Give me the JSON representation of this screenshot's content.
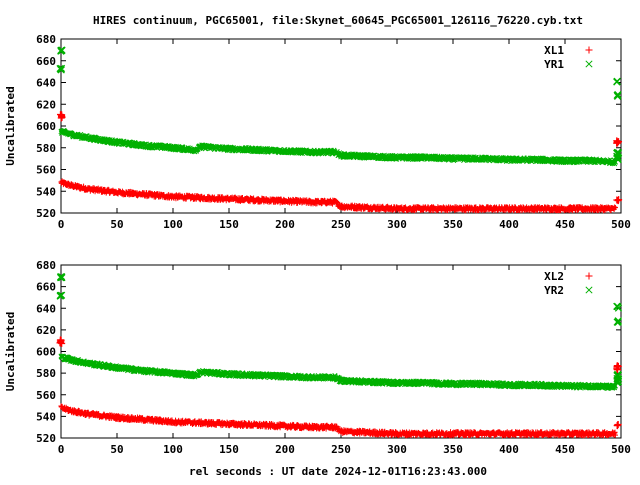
{
  "title": "HIRES continuum, PGC65001, file:Skynet_60645_PGC65001_126116_76220.cyb.txt",
  "xlabel": "rel seconds : UT date 2024-12-01T16:23:43.000",
  "colors": {
    "xl": "#ff0000",
    "yr": "#00b000",
    "axis": "#000000"
  },
  "chart_data": [
    {
      "type": "scatter",
      "ylabel": "Uncalibrated",
      "xlim": [
        0,
        500
      ],
      "ylim": [
        520,
        680
      ],
      "xticks": [
        0,
        50,
        100,
        150,
        200,
        250,
        300,
        350,
        400,
        450,
        500
      ],
      "yticks": [
        520,
        540,
        560,
        580,
        600,
        620,
        640,
        660,
        680
      ],
      "grid": false,
      "legend_position": "top-right",
      "series": [
        {
          "name": "XL1",
          "marker": "+",
          "color": "#ff0000",
          "dense_x": [
            0,
            10,
            25,
            50,
            75,
            100,
            125,
            150,
            175,
            200,
            225,
            245,
            250,
            275,
            300,
            325,
            350,
            375,
            400,
            425,
            450,
            475,
            495
          ],
          "dense_y": [
            548,
            545,
            542,
            539,
            537,
            535,
            534,
            533,
            532,
            531,
            530,
            530,
            526,
            525,
            524,
            524,
            524,
            524,
            524,
            524,
            524,
            524,
            524
          ],
          "spikes": [
            [
              0,
              610
            ],
            [
              0,
              608
            ],
            [
              497,
              586
            ],
            [
              497,
              584
            ],
            [
              497,
              532
            ]
          ]
        },
        {
          "name": "YR1",
          "marker": "x",
          "color": "#00b000",
          "dense_x": [
            0,
            10,
            25,
            50,
            75,
            100,
            120,
            125,
            150,
            175,
            200,
            225,
            245,
            250,
            275,
            300,
            325,
            350,
            375,
            400,
            425,
            450,
            475,
            495
          ],
          "dense_y": [
            595,
            592,
            589,
            585,
            582,
            580,
            578,
            581,
            579,
            578,
            577,
            576,
            576,
            573,
            572,
            571,
            571,
            570,
            570,
            569,
            569,
            568,
            568,
            567
          ],
          "spikes": [
            [
              0,
              669
            ],
            [
              0,
              652
            ],
            [
              497,
              641
            ],
            [
              497,
              628
            ],
            [
              497,
              575
            ],
            [
              497,
              572
            ],
            [
              497,
              570
            ]
          ]
        }
      ]
    },
    {
      "type": "scatter",
      "ylabel": "Uncalibrated",
      "xlim": [
        0,
        500
      ],
      "ylim": [
        520,
        680
      ],
      "xticks": [
        0,
        50,
        100,
        150,
        200,
        250,
        300,
        350,
        400,
        450,
        500
      ],
      "yticks": [
        520,
        540,
        560,
        580,
        600,
        620,
        640,
        660,
        680
      ],
      "grid": false,
      "legend_position": "top-right",
      "series": [
        {
          "name": "XL2",
          "marker": "+",
          "color": "#ff0000",
          "dense_x": [
            0,
            10,
            25,
            50,
            75,
            100,
            125,
            150,
            175,
            200,
            225,
            245,
            250,
            275,
            300,
            325,
            350,
            375,
            400,
            425,
            450,
            475,
            495
          ],
          "dense_y": [
            548,
            545,
            542,
            539,
            537,
            535,
            534,
            533,
            532,
            531,
            530,
            530,
            526,
            525,
            524,
            524,
            524,
            524,
            524,
            524,
            524,
            524,
            524
          ],
          "spikes": [
            [
              0,
              610
            ],
            [
              0,
              608
            ],
            [
              497,
              586
            ],
            [
              497,
              584
            ],
            [
              497,
              532
            ]
          ]
        },
        {
          "name": "YR2",
          "marker": "x",
          "color": "#00b000",
          "dense_x": [
            0,
            10,
            25,
            50,
            75,
            100,
            120,
            125,
            150,
            175,
            200,
            225,
            245,
            250,
            275,
            300,
            325,
            350,
            375,
            400,
            425,
            450,
            475,
            495
          ],
          "dense_y": [
            595,
            592,
            589,
            585,
            582,
            580,
            578,
            581,
            579,
            578,
            577,
            576,
            576,
            573,
            572,
            571,
            571,
            570,
            570,
            569,
            569,
            568,
            568,
            567
          ],
          "spikes": [
            [
              0,
              669
            ],
            [
              0,
              652
            ],
            [
              497,
              641
            ],
            [
              497,
              628
            ],
            [
              497,
              578
            ],
            [
              497,
              575
            ],
            [
              497,
              572
            ]
          ]
        }
      ]
    }
  ]
}
